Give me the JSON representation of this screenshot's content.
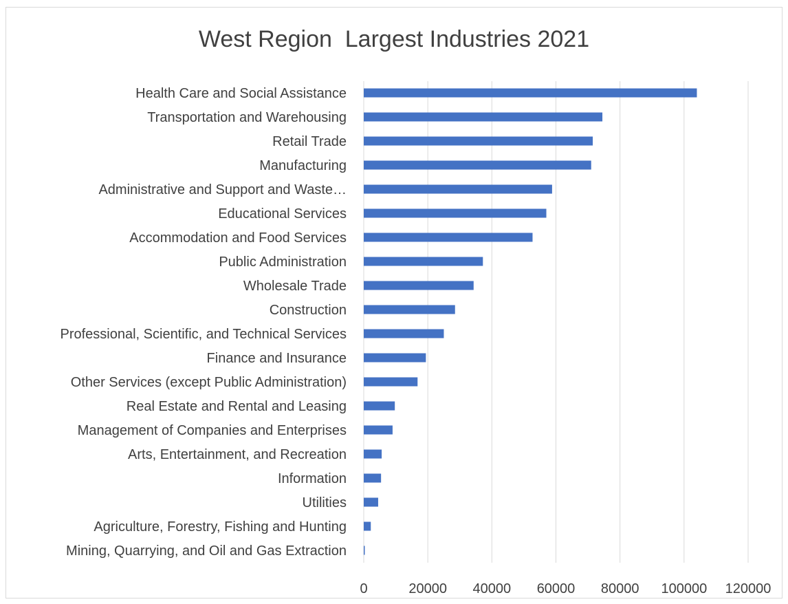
{
  "chart_data": {
    "type": "bar",
    "orientation": "horizontal",
    "title": "West Region  Largest Industries 2021",
    "categories": [
      "Health Care and Social Assistance",
      "Transportation and Warehousing",
      "Retail Trade",
      "Manufacturing",
      "Administrative and Support and Waste…",
      "Educational Services",
      "Accommodation and Food Services",
      "Public Administration",
      "Wholesale Trade",
      "Construction",
      "Professional, Scientific, and Technical Services",
      "Finance and Insurance",
      "Other Services (except Public Administration)",
      "Real Estate and Rental and Leasing",
      "Management of Companies and Enterprises",
      "Arts, Entertainment, and Recreation",
      "Information",
      "Utilities",
      "Agriculture, Forestry, Fishing and Hunting",
      "Mining, Quarrying, and Oil and Gas Extraction"
    ],
    "values": [
      104000,
      74500,
      71500,
      71000,
      58800,
      57000,
      52700,
      37200,
      34300,
      28500,
      25000,
      19400,
      16800,
      9700,
      9000,
      5600,
      5400,
      4500,
      2200,
      300
    ],
    "xlim": [
      0,
      120000
    ],
    "xticks": [
      "0",
      "20000",
      "40000",
      "60000",
      "80000",
      "100000",
      "120000"
    ],
    "grid": "vertical",
    "bar_color": "#4472c4",
    "grid_color": "#d9d9d9",
    "legend": "none"
  }
}
